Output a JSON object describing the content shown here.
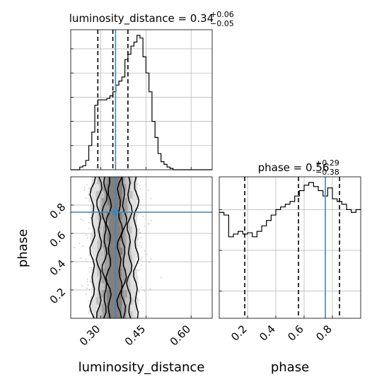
{
  "chart_data": [
    {
      "type": "histogram",
      "panel": "marginal-luminosity_distance",
      "title_main": "luminosity_distance = 0.34",
      "title_sup": "+0.06",
      "title_sub": "−0.05",
      "xlim": [
        0.2,
        0.67
      ],
      "bin_edges": [
        0.2,
        0.21,
        0.22,
        0.23,
        0.24,
        0.25,
        0.26,
        0.27,
        0.28,
        0.29,
        0.3,
        0.31,
        0.32,
        0.33,
        0.34,
        0.35,
        0.36,
        0.37,
        0.38,
        0.39,
        0.4,
        0.41,
        0.42,
        0.43,
        0.44,
        0.45,
        0.46,
        0.47,
        0.48,
        0.49,
        0.5,
        0.51,
        0.52,
        0.53,
        0.54,
        0.55,
        0.56,
        0.57,
        0.58,
        0.59,
        0.6,
        0.61,
        0.62,
        0.63,
        0.64,
        0.65,
        0.66,
        0.67
      ],
      "counts": [
        0,
        0,
        0,
        0.02,
        0.03,
        0.07,
        0.18,
        0.28,
        0.48,
        0.52,
        0.52,
        0.52,
        0.53,
        0.55,
        0.58,
        0.63,
        0.66,
        0.69,
        0.82,
        0.86,
        0.92,
        0.95,
        1.0,
        0.98,
        0.84,
        0.72,
        0.58,
        0.36,
        0.24,
        0.12,
        0.06,
        0.04,
        0.02,
        0.01,
        0,
        0,
        0,
        0,
        0,
        0,
        0,
        0,
        0,
        0,
        0,
        0,
        0
      ],
      "quantiles": [
        0.29,
        0.34,
        0.39
      ],
      "truth": 0.349,
      "ytick_positions": [
        0.2,
        0.4,
        0.6,
        0.8,
        1.0
      ]
    },
    {
      "type": "histogram",
      "panel": "marginal-phase",
      "title_main": "phase = 0.56",
      "title_sup": "+0.29",
      "title_sub": "−0.38",
      "xlim": [
        0.0,
        1.0
      ],
      "counts": [
        0.78,
        0.76,
        0.6,
        0.62,
        0.64,
        0.62,
        0.63,
        0.6,
        0.64,
        0.68,
        0.72,
        0.76,
        0.8,
        0.82,
        0.84,
        0.86,
        0.9,
        0.94,
        0.98,
        1.0,
        0.97,
        0.94,
        0.9,
        0.96,
        0.88,
        0.86,
        0.84,
        0.8,
        0.78,
        0.8
      ],
      "quantiles": [
        0.18,
        0.56,
        0.85
      ],
      "truth": 0.75,
      "ytick_positions": [
        0.2,
        0.5,
        0.8
      ]
    },
    {
      "type": "scatter",
      "panel": "joint",
      "xlabel": "luminosity_distance",
      "ylabel": "phase",
      "xlim": [
        0.2,
        0.67
      ],
      "ylim": [
        0.0,
        1.0
      ],
      "x_ticks": [
        "0.30",
        "0.45",
        "0.60"
      ],
      "x_tick_values": [
        0.3,
        0.45,
        0.6
      ],
      "y_ticks": [
        "0.2",
        "0.4",
        "0.6",
        "0.8"
      ],
      "y_tick_values": [
        0.2,
        0.4,
        0.6,
        0.8
      ],
      "truth": [
        0.349,
        0.75
      ],
      "density_center_x": 0.345,
      "density_spread_x": 0.04
    },
    {
      "type": "histogram-axis",
      "panel": "phase-x",
      "xlabel": "phase",
      "x_ticks": [
        "0.2",
        "0.4",
        "0.6",
        "0.8"
      ],
      "x_tick_values": [
        0.2,
        0.4,
        0.6,
        0.8
      ]
    }
  ],
  "colors": {
    "axis": "#000000",
    "grid": "#b0b0b0",
    "truth": "#4682b4",
    "hist": "#000000",
    "contour": "#000000",
    "scatter": "#9a9a9a"
  }
}
